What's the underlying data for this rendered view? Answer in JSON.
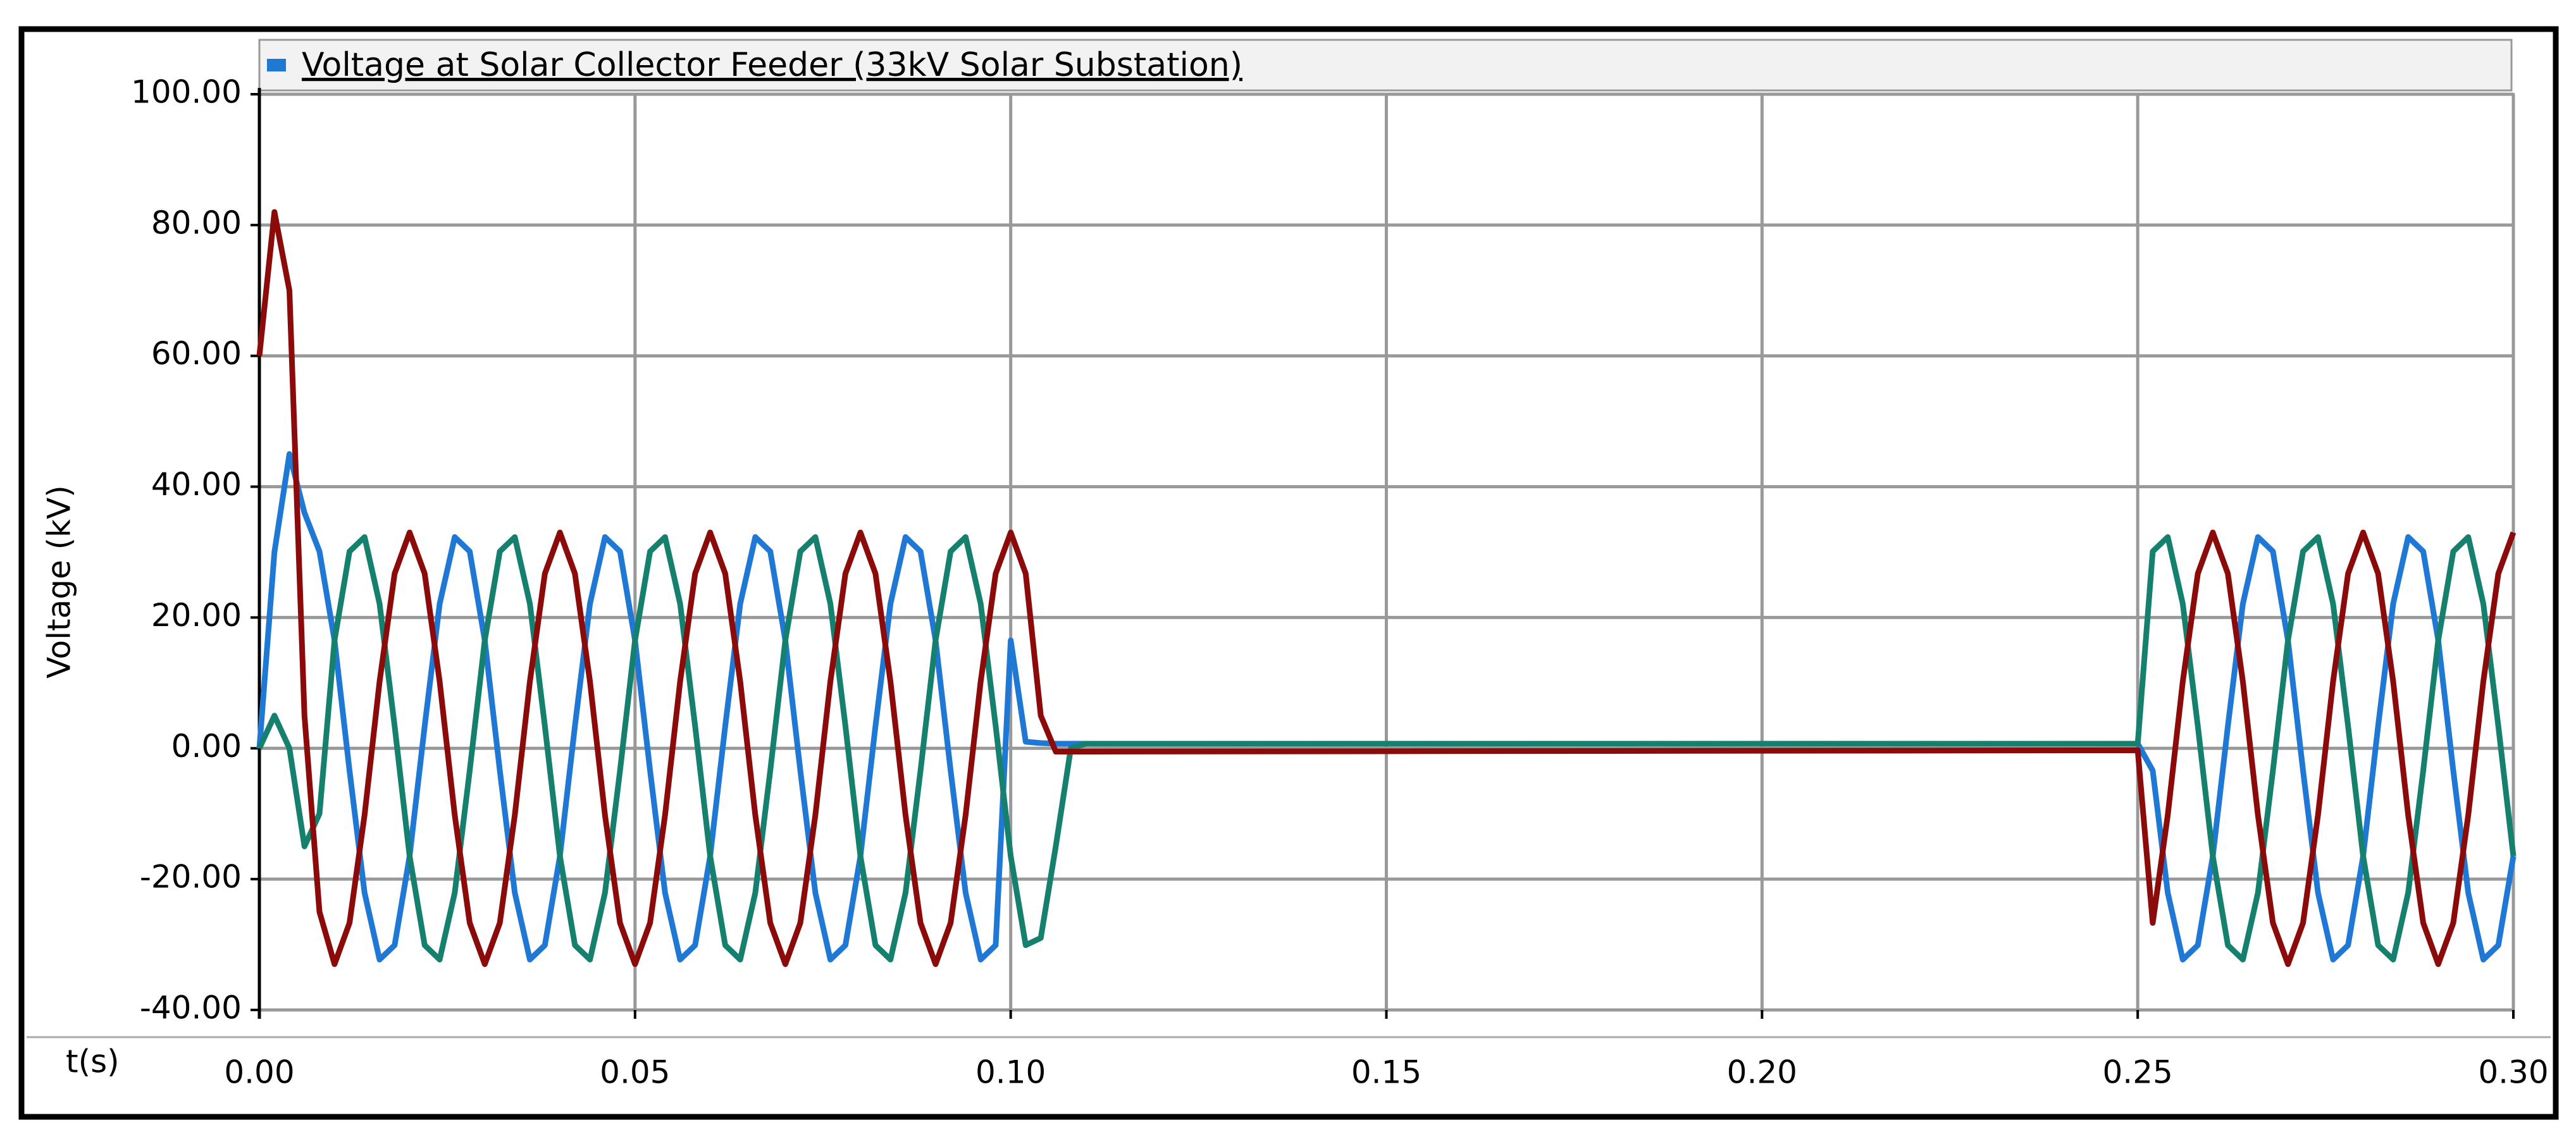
{
  "chart_data": {
    "type": "line",
    "y_label": "Voltage (kV)",
    "x_label": "t(s)",
    "grid": true,
    "xlim": [
      0,
      0.3
    ],
    "ylim": [
      -40,
      100
    ],
    "xticks": [
      {
        "value": 0,
        "label": "0.00"
      },
      {
        "value": 0.05,
        "label": "0.05"
      },
      {
        "value": 0.1,
        "label": "0.10"
      },
      {
        "value": 0.15,
        "label": "0.15"
      },
      {
        "value": 0.2,
        "label": "0.20"
      },
      {
        "value": 0.25,
        "label": "0.25"
      },
      {
        "value": 0.3,
        "label": "0.30"
      }
    ],
    "yticks": [
      {
        "value": 100,
        "label": "100.00"
      },
      {
        "value": 80,
        "label": "80.00"
      },
      {
        "value": 60,
        "label": "60.00"
      },
      {
        "value": 40,
        "label": "40.00"
      },
      {
        "value": 20,
        "label": "20.00"
      },
      {
        "value": 0,
        "label": "0.00"
      },
      {
        "value": -20,
        "label": "-20.00"
      },
      {
        "value": -40,
        "label": "-40.00"
      }
    ],
    "x": [
      0,
      0.002,
      0.004,
      0.006,
      0.008,
      0.01,
      0.012,
      0.014,
      0.016,
      0.018,
      0.02,
      0.022,
      0.024,
      0.026,
      0.028,
      0.03,
      0.032,
      0.034,
      0.036,
      0.038,
      0.04,
      0.042,
      0.044,
      0.046,
      0.048,
      0.05,
      0.052,
      0.054,
      0.056,
      0.058,
      0.06,
      0.062,
      0.064,
      0.066,
      0.068,
      0.07,
      0.072,
      0.074,
      0.076,
      0.078,
      0.08,
      0.082,
      0.084,
      0.086,
      0.088,
      0.09,
      0.092,
      0.094,
      0.096,
      0.098,
      0.1,
      0.102,
      0.104,
      0.106,
      0.108,
      0.11,
      0.25,
      0.252,
      0.254,
      0.256,
      0.258,
      0.26,
      0.262,
      0.264,
      0.266,
      0.268,
      0.27,
      0.272,
      0.274,
      0.276,
      0.278,
      0.28,
      0.282,
      0.284,
      0.286,
      0.288,
      0.29,
      0.292,
      0.294,
      0.296,
      0.298,
      0.3
    ],
    "series": [
      {
        "name": "Voltage at Solar Collector Feeder (33kV Solar Substation)",
        "color": "#1f78d4",
        "values": [
          0,
          30,
          45,
          36,
          30.1,
          16.5,
          -3.4,
          -22.1,
          -32.3,
          -30.1,
          -16.5,
          3.4,
          22.1,
          32.3,
          30.1,
          16.5,
          -3.4,
          -22.1,
          -32.3,
          -30.1,
          -16.5,
          3.4,
          22.1,
          32.3,
          30.1,
          16.5,
          -3.4,
          -22.1,
          -32.3,
          -30.1,
          -16.5,
          3.4,
          22.1,
          32.3,
          30.1,
          16.5,
          -3.4,
          -22.1,
          -32.3,
          -30.1,
          -16.5,
          3.4,
          22.1,
          32.3,
          30.1,
          16.5,
          -3.4,
          -22.1,
          -32.3,
          -30.1,
          16.5,
          1,
          0.8,
          0.7,
          0.7,
          0.7,
          0.7,
          -3.4,
          -22.1,
          -32.3,
          -30.1,
          -16.5,
          3.4,
          22.1,
          32.3,
          30.1,
          16.5,
          -3.4,
          -22.1,
          -32.3,
          -30.1,
          -16.5,
          3.4,
          22.1,
          32.3,
          30.1,
          16.5,
          -3.4,
          -22.1,
          -32.3,
          -30.1,
          -16.5
        ]
      },
      {
        "color": "#16806e",
        "values": [
          0,
          5,
          0,
          -15,
          -10,
          16.5,
          30.1,
          32.3,
          22.1,
          3.4,
          -16.5,
          -30.1,
          -32.3,
          -22.1,
          -3.4,
          16.5,
          30.1,
          32.3,
          22.1,
          3.4,
          -16.5,
          -30.1,
          -32.3,
          -22.1,
          -3.4,
          16.5,
          30.1,
          32.3,
          22.1,
          3.4,
          -16.5,
          -30.1,
          -32.3,
          -22.1,
          -3.4,
          16.5,
          30.1,
          32.3,
          22.1,
          3.4,
          -16.5,
          -30.1,
          -32.3,
          -22.1,
          -3.4,
          16.5,
          30.1,
          32.3,
          22.1,
          3.4,
          -16.5,
          -30.1,
          -29,
          -15,
          0,
          0.7,
          0.7,
          30.1,
          32.3,
          22.1,
          3.4,
          -16.5,
          -30.1,
          -32.3,
          -22.1,
          -3.4,
          16.5,
          30.1,
          32.3,
          22.1,
          3.4,
          -16.5,
          -30.1,
          -32.3,
          -22.1,
          -3.4,
          16.5,
          30.1,
          32.3,
          22.1,
          3.4,
          -16.5
        ]
      },
      {
        "color": "#8b0a0a",
        "values": [
          60,
          82,
          70,
          5,
          -25,
          -33,
          -26.7,
          -10.2,
          10.2,
          26.7,
          33,
          26.7,
          10.2,
          -10.2,
          -26.7,
          -33,
          -26.7,
          -10.2,
          10.2,
          26.7,
          33,
          26.7,
          10.2,
          -10.2,
          -26.7,
          -33,
          -26.7,
          -10.2,
          10.2,
          26.7,
          33,
          26.7,
          10.2,
          -10.2,
          -26.7,
          -33,
          -26.7,
          -10.2,
          10.2,
          26.7,
          33,
          26.7,
          10.2,
          -10.2,
          -26.7,
          -33,
          -26.7,
          -10.2,
          10.2,
          26.7,
          33,
          26.7,
          5,
          -0.5,
          -0.5,
          -0.5,
          -0.3,
          -26.7,
          -10.2,
          10.2,
          26.7,
          33,
          26.7,
          10.2,
          -10.2,
          -26.7,
          -33,
          -26.7,
          -10.2,
          10.2,
          26.7,
          33,
          26.7,
          10.2,
          -10.2,
          -26.7,
          -33,
          -26.7,
          -10.2,
          10.2,
          26.7,
          33
        ]
      }
    ]
  }
}
